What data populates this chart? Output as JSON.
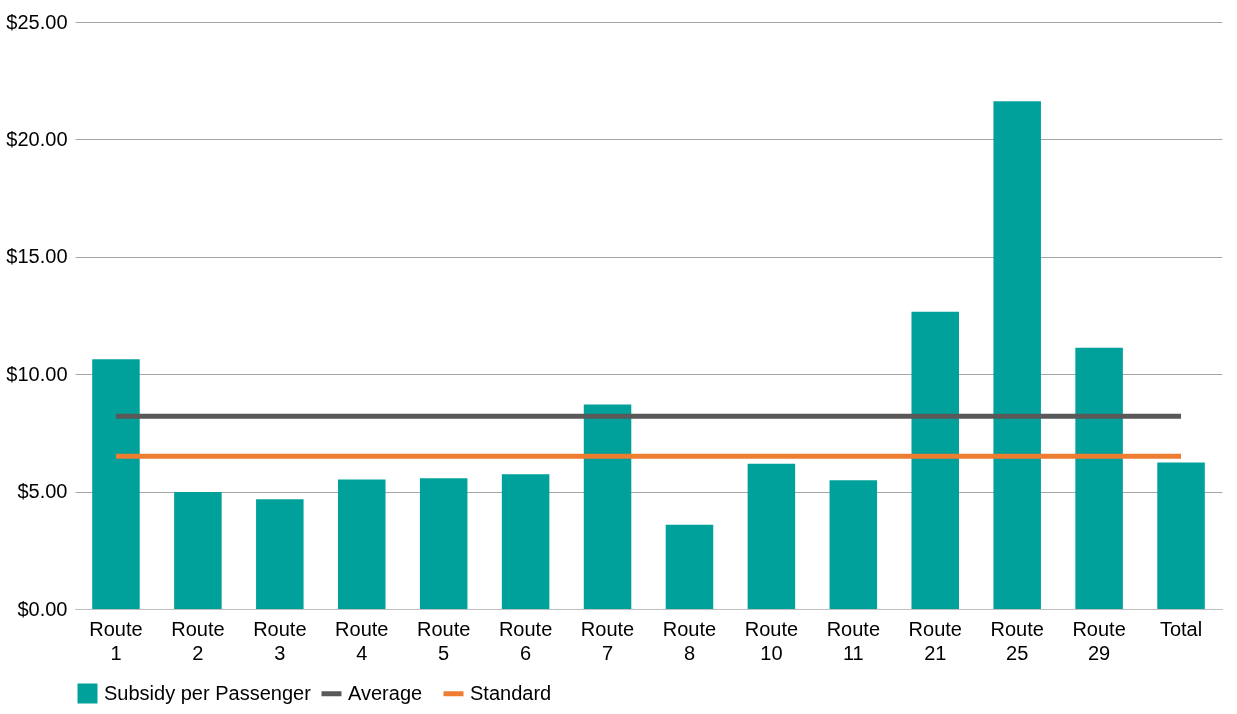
{
  "chart_data": {
    "type": "bar",
    "categories": [
      "Route 1",
      "Route 2",
      "Route 3",
      "Route 4",
      "Route 5",
      "Route 6",
      "Route 7",
      "Route 8",
      "Route 10",
      "Route 11",
      "Route 21",
      "Route 25",
      "Route 29",
      "Total"
    ],
    "series": [
      {
        "name": "Subsidy per Passenger",
        "color": "#00a19a",
        "values": [
          10.64,
          4.98,
          4.67,
          5.52,
          5.57,
          5.74,
          8.71,
          3.59,
          6.19,
          5.48,
          12.66,
          21.63,
          11.13,
          6.24
        ]
      },
      {
        "name": "Average",
        "color": "#595959",
        "type": "line",
        "values": [
          8.21,
          8.21,
          8.21,
          8.21,
          8.21,
          8.21,
          8.21,
          8.21,
          8.21,
          8.21,
          8.21,
          8.21,
          8.21,
          8.21
        ]
      },
      {
        "name": "Standard",
        "color": "#ed7d31",
        "type": "line",
        "values": [
          6.51,
          6.51,
          6.51,
          6.51,
          6.51,
          6.51,
          6.51,
          6.51,
          6.51,
          6.51,
          6.51,
          6.51,
          6.51,
          6.51
        ]
      }
    ],
    "ylim": [
      0,
      25
    ],
    "yticks": [
      {
        "value": 0,
        "label": "$0.00"
      },
      {
        "value": 5,
        "label": "$5.00"
      },
      {
        "value": 10,
        "label": "$10.00"
      },
      {
        "value": 15,
        "label": "$15.00"
      },
      {
        "value": 20,
        "label": "$20.00"
      },
      {
        "value": 25,
        "label": "$25.00"
      }
    ],
    "grid": "y",
    "legend": "bottom",
    "marker": "none",
    "line_style": "solid"
  }
}
